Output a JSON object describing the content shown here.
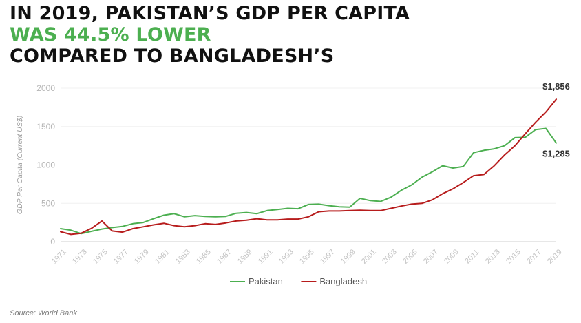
{
  "title": {
    "line1": "IN 2019, PAKISTAN’S GDP PER CAPITA",
    "line2": "WAS 44.5% LOWER",
    "line3": "COMPARED TO BANGLADESH’S"
  },
  "source": "Source: World Bank",
  "colors": {
    "pakistan": "#4caf50",
    "bangladesh": "#b71c1c",
    "accent_green": "#4caf50",
    "text_dark": "#111111",
    "axis_text": "#bdbdbd"
  },
  "chart_data": {
    "type": "line",
    "title": "IN 2019, PAKISTAN’S GDP PER CAPITA WAS 44.5% LOWER COMPARED TO BANGLADESH’S",
    "ylabel": "GDP Per Capita (Current US$)",
    "xlabel": "",
    "ylim": [
      0,
      2000
    ],
    "yticks": [
      0,
      500,
      1000,
      1500,
      2000
    ],
    "xlim": [
      1971,
      2019
    ],
    "xticks": [
      1971,
      1973,
      1975,
      1977,
      1979,
      1981,
      1983,
      1985,
      1987,
      1989,
      1991,
      1993,
      1995,
      1997,
      1999,
      2001,
      2003,
      2005,
      2007,
      2009,
      2011,
      2013,
      2015,
      2017,
      2019
    ],
    "grid": true,
    "legend": "bottom-center",
    "x": [
      1971,
      1972,
      1973,
      1974,
      1975,
      1976,
      1977,
      1978,
      1979,
      1980,
      1981,
      1982,
      1983,
      1984,
      1985,
      1986,
      1987,
      1988,
      1989,
      1990,
      1991,
      1992,
      1993,
      1994,
      1995,
      1996,
      1997,
      1998,
      1999,
      2000,
      2001,
      2002,
      2003,
      2004,
      2005,
      2006,
      2007,
      2008,
      2009,
      2010,
      2011,
      2012,
      2013,
      2014,
      2015,
      2016,
      2017,
      2018,
      2019
    ],
    "series": [
      {
        "name": "Pakistan",
        "color": "#4caf50",
        "values": [
          170,
          150,
          105,
          135,
          165,
          185,
          200,
          235,
          250,
          300,
          345,
          365,
          325,
          340,
          330,
          325,
          330,
          370,
          380,
          365,
          405,
          420,
          435,
          430,
          485,
          490,
          470,
          455,
          450,
          565,
          535,
          525,
          580,
          670,
          740,
          840,
          910,
          990,
          960,
          980,
          1160,
          1190,
          1210,
          1250,
          1355,
          1360,
          1460,
          1475,
          1285
        ]
      },
      {
        "name": "Bangladesh",
        "color": "#b71c1c",
        "values": [
          130,
          95,
          110,
          175,
          270,
          140,
          125,
          170,
          195,
          220,
          240,
          210,
          195,
          210,
          235,
          225,
          245,
          270,
          280,
          300,
          285,
          285,
          295,
          295,
          325,
          390,
          400,
          400,
          405,
          410,
          405,
          405,
          435,
          465,
          490,
          500,
          545,
          625,
          690,
          770,
          860,
          875,
          990,
          1130,
          1250,
          1405,
          1555,
          1690,
          1856
        ]
      }
    ],
    "annotations": [
      {
        "series": "Bangladesh",
        "x": 2019,
        "text": "$1,856"
      },
      {
        "series": "Pakistan",
        "x": 2019,
        "text": "$1,285"
      }
    ]
  }
}
